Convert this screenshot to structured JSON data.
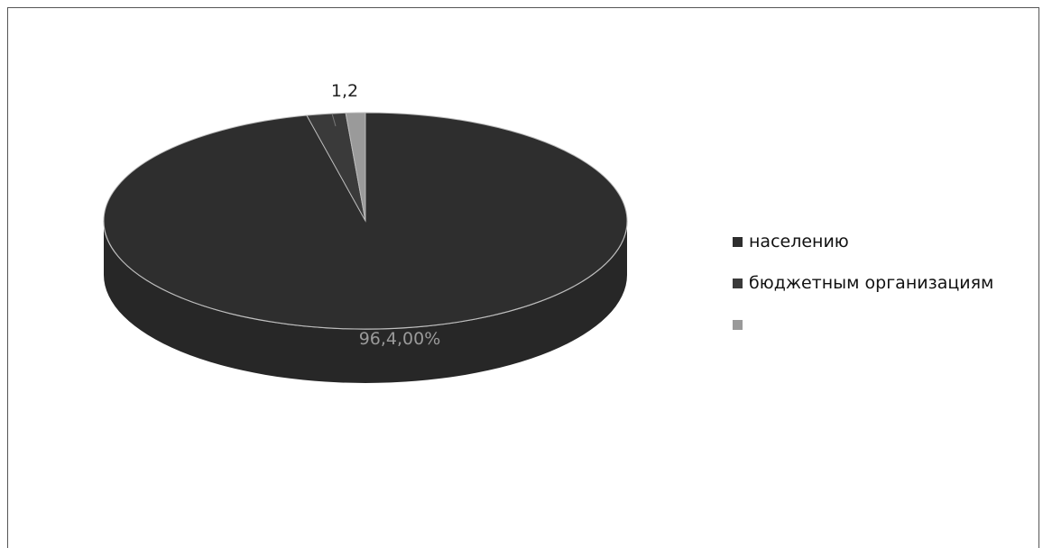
{
  "chart_data": {
    "type": "pie",
    "title": "",
    "slices": [
      {
        "name": "населению",
        "value": 96.4,
        "label": "96,4,00%",
        "color": "#2e2e2e"
      },
      {
        "name": "бюджетным организациям",
        "value": 2.4,
        "label": "",
        "color": "#3a3a3a"
      },
      {
        "name": "",
        "value": 1.2,
        "label": "1,2",
        "color": "#9a9a9a"
      }
    ],
    "legend": {
      "position": "right",
      "items": [
        "населению",
        "бюджетным организациям",
        ""
      ]
    }
  }
}
